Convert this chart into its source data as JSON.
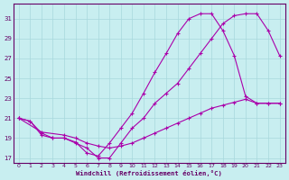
{
  "xlabel": "Windchill (Refroidissement éolien,°C)",
  "bg_color": "#c8eef0",
  "grid_color": "#a8d8dc",
  "line_color": "#aa00aa",
  "xlim": [
    -0.5,
    23.5
  ],
  "ylim": [
    16.5,
    32.5
  ],
  "xticks": [
    0,
    1,
    2,
    3,
    4,
    5,
    6,
    7,
    8,
    9,
    10,
    11,
    12,
    13,
    14,
    15,
    16,
    17,
    18,
    19,
    20,
    21,
    22,
    23
  ],
  "yticks": [
    17,
    19,
    21,
    23,
    25,
    27,
    29,
    31
  ],
  "line1_x": [
    0,
    1,
    2,
    3,
    4,
    5,
    6,
    7,
    8,
    9,
    10,
    11,
    12,
    13,
    14,
    15,
    16,
    17,
    18,
    19,
    20,
    21,
    22,
    23
  ],
  "line1_y": [
    21,
    20.7,
    19.5,
    19.0,
    19.0,
    18.6,
    17.5,
    17.2,
    18.5,
    20.0,
    21.5,
    23.5,
    25.6,
    27.5,
    29.5,
    31.0,
    31.5,
    31.5,
    29.8,
    27.3,
    23.2,
    22.5,
    22.5,
    22.5
  ],
  "line2_x": [
    0,
    2,
    4,
    5,
    6,
    7,
    8,
    9,
    10,
    11,
    12,
    13,
    14,
    15,
    16,
    17,
    18,
    19,
    20,
    21,
    22,
    23
  ],
  "line2_y": [
    21,
    19.6,
    19.3,
    19.0,
    18.5,
    18.2,
    18.0,
    18.2,
    18.5,
    19.0,
    19.5,
    20.0,
    20.5,
    21.0,
    21.5,
    22.0,
    22.3,
    22.6,
    22.9,
    22.5,
    22.5,
    22.5
  ],
  "line3_x": [
    0,
    1,
    2,
    3,
    4,
    5,
    6,
    7,
    8,
    9,
    10,
    11,
    12,
    13,
    14,
    15,
    16,
    17,
    18,
    19,
    20,
    21,
    22,
    23
  ],
  "line3_y": [
    21,
    20.7,
    19.3,
    19.0,
    19.0,
    18.5,
    18.0,
    17.0,
    17.0,
    18.5,
    20.0,
    21.0,
    22.5,
    23.5,
    24.5,
    26.0,
    27.5,
    29.0,
    30.5,
    31.3,
    31.5,
    31.5,
    29.8,
    27.3
  ]
}
